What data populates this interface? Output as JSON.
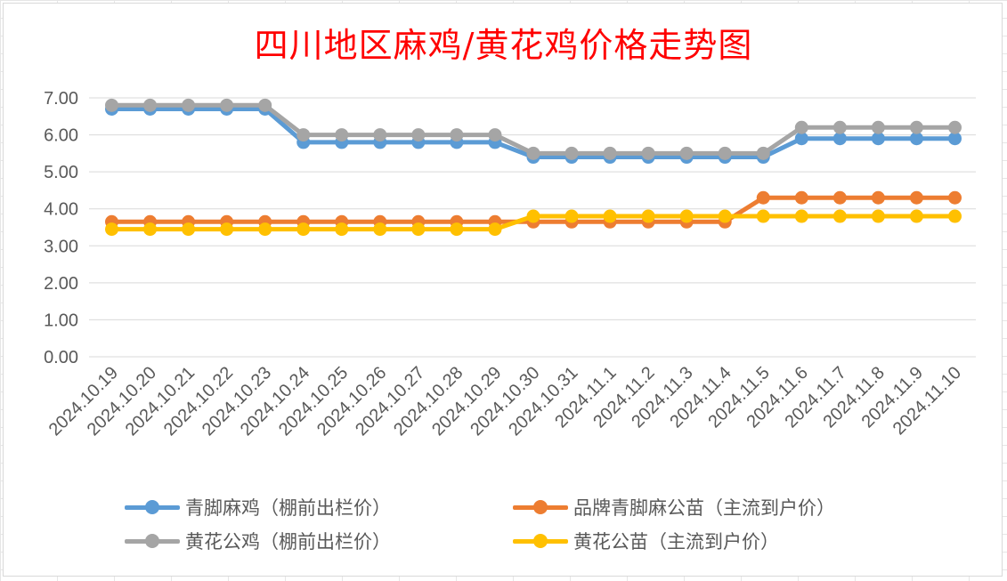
{
  "chart_data": {
    "type": "line",
    "title": "四川地区麻鸡/黄花鸡价格走势图",
    "categories": [
      "2024.10.19",
      "2024.10.20",
      "2024.10.21",
      "2024.10.22",
      "2024.10.23",
      "2024.10.24",
      "2024.10.25",
      "2024.10.26",
      "2024.10.27",
      "2024.10.28",
      "2024.10.29",
      "2024.10.30",
      "2024.10.31",
      "2024.11.1",
      "2024.11.2",
      "2024.11.3",
      "2024.11.4",
      "2024.11.5",
      "2024.11.6",
      "2024.11.7",
      "2024.11.8",
      "2024.11.9",
      "2024.11.10"
    ],
    "yticks": [
      "0.00",
      "1.00",
      "2.00",
      "3.00",
      "4.00",
      "5.00",
      "6.00",
      "7.00"
    ],
    "ylim": [
      0,
      7
    ],
    "grid": true,
    "legend_position": "bottom",
    "series": [
      {
        "name": "青脚麻鸡（棚前出栏价）",
        "color": "#5b9bd5",
        "values": [
          6.7,
          6.7,
          6.7,
          6.7,
          6.7,
          5.8,
          5.8,
          5.8,
          5.8,
          5.8,
          5.8,
          5.4,
          5.4,
          5.4,
          5.4,
          5.4,
          5.4,
          5.4,
          5.9,
          5.9,
          5.9,
          5.9,
          5.9
        ]
      },
      {
        "name": "品牌青脚麻公苗（主流到户价）",
        "color": "#ed7d31",
        "values": [
          3.65,
          3.65,
          3.65,
          3.65,
          3.65,
          3.65,
          3.65,
          3.65,
          3.65,
          3.65,
          3.65,
          3.65,
          3.65,
          3.65,
          3.65,
          3.65,
          3.65,
          4.3,
          4.3,
          4.3,
          4.3,
          4.3,
          4.3
        ]
      },
      {
        "name": "黄花公鸡（棚前出栏价）",
        "color": "#a5a5a5",
        "values": [
          6.8,
          6.8,
          6.8,
          6.8,
          6.8,
          6.0,
          6.0,
          6.0,
          6.0,
          6.0,
          6.0,
          5.5,
          5.5,
          5.5,
          5.5,
          5.5,
          5.5,
          5.5,
          6.2,
          6.2,
          6.2,
          6.2,
          6.2
        ]
      },
      {
        "name": "黄花公苗（主流到户价）",
        "color": "#ffc000",
        "values": [
          3.45,
          3.45,
          3.45,
          3.45,
          3.45,
          3.45,
          3.45,
          3.45,
          3.45,
          3.45,
          3.45,
          3.8,
          3.8,
          3.8,
          3.8,
          3.8,
          3.8,
          3.8,
          3.8,
          3.8,
          3.8,
          3.8,
          3.8
        ]
      }
    ]
  }
}
